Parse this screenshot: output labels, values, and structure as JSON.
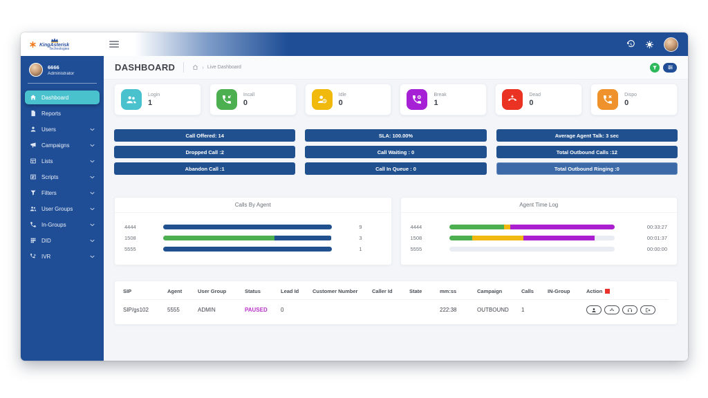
{
  "theme": {
    "navy": "#1f4e96",
    "navyPill": "#21508f",
    "navyLight": "#3c69a7",
    "teal": "#4ac2ce",
    "green": "#4caf50",
    "yellow": "#f0b810",
    "purple": "#aa1fd0",
    "red": "#e8312a",
    "orange": "#f0922b",
    "magenta": "#bb33cc",
    "track": "#e9edf3",
    "contentBg": "#f3f5f9"
  },
  "brand": {
    "name": "KingAsterisk",
    "tagline": "Technologies"
  },
  "header": {
    "icons": {
      "menu": "hamburger-icon",
      "history": "history-icon",
      "settings": "gears-icon",
      "avatar": "user-avatar"
    }
  },
  "user_panel": {
    "id": "6666",
    "role": "Administrator"
  },
  "sidebar": {
    "items": [
      {
        "label": "Dashboard",
        "icon": "home-icon",
        "active": true,
        "expandable": false
      },
      {
        "label": "Reports",
        "icon": "report-icon",
        "active": false,
        "expandable": false
      },
      {
        "label": "Users",
        "icon": "user-icon",
        "active": false,
        "expandable": true
      },
      {
        "label": "Campaigns",
        "icon": "megaphone-icon",
        "active": false,
        "expandable": true
      },
      {
        "label": "Lists",
        "icon": "table-icon",
        "active": false,
        "expandable": true
      },
      {
        "label": "Scripts",
        "icon": "script-icon",
        "active": false,
        "expandable": true
      },
      {
        "label": "Filters",
        "icon": "funnel-icon",
        "active": false,
        "expandable": true
      },
      {
        "label": "User Groups",
        "icon": "user-group-icon",
        "active": false,
        "expandable": true
      },
      {
        "label": "In-Groups",
        "icon": "phone-icon",
        "active": false,
        "expandable": true
      },
      {
        "label": "DID",
        "icon": "keypad-icon",
        "active": false,
        "expandable": true
      },
      {
        "label": "IVR",
        "icon": "phone-wave-icon",
        "active": false,
        "expandable": true
      }
    ]
  },
  "page": {
    "title": "DASHBOARD",
    "breadcrumb": {
      "home_icon": "home-icon",
      "separator": "›",
      "current": "Live Dashboard"
    },
    "toolbar": {
      "filter_button_icon": "funnel-icon",
      "filter_button_color": "#2eb85c",
      "options_button_icon": "sliders-icon"
    }
  },
  "stat_cards": [
    {
      "label": "Login",
      "value": "1",
      "color": "#4ac2ce",
      "icon": "users-icon"
    },
    {
      "label": "Incall",
      "value": "0",
      "color": "#4caf50",
      "icon": "phone-incoming-icon"
    },
    {
      "label": "Idle",
      "value": "0",
      "color": "#f0b90b",
      "icon": "user-clock-icon"
    },
    {
      "label": "Break",
      "value": "1",
      "color": "#a620d6",
      "icon": "phone-pause-icon"
    },
    {
      "label": "Dead",
      "value": "0",
      "color": "#ea3323",
      "icon": "phone-down-icon"
    },
    {
      "label": "Dispo",
      "value": "0",
      "color": "#f0922b",
      "icon": "phone-x-icon"
    }
  ],
  "stat_pills": [
    [
      "Call Offered: 14",
      "Dropped Call :2",
      "Abandon Call :1"
    ],
    [
      "SLA: 100.00%",
      "Call Waiting : 0",
      "Call In Queue : 0"
    ],
    [
      "Average Agent Talk: 3 sec",
      "Total Outbound Calls :12",
      "Total Outbound Ringing :0"
    ]
  ],
  "chart_data": [
    {
      "type": "bar",
      "title": "Calls By Agent",
      "orientation": "horizontal",
      "rows": [
        {
          "label": "4444",
          "value": "9",
          "segments": [
            {
              "color": "navyPill",
              "pct": 100
            }
          ]
        },
        {
          "label": "1508",
          "value": "3",
          "segments": [
            {
              "color": "green",
              "pct": 66
            },
            {
              "color": "navyPill",
              "pct": 34
            }
          ]
        },
        {
          "label": "5555",
          "value": "1",
          "segments": [
            {
              "color": "navyPill",
              "pct": 100
            }
          ]
        }
      ]
    },
    {
      "type": "bar",
      "title": "Agent Time Log",
      "orientation": "horizontal",
      "rows": [
        {
          "label": "4444",
          "value": "00:33:27",
          "segments": [
            {
              "color": "green",
              "pct": 33
            },
            {
              "color": "yellow",
              "pct": 4
            },
            {
              "color": "purple",
              "pct": 63
            }
          ]
        },
        {
          "label": "1508",
          "value": "00:01:37",
          "segments": [
            {
              "color": "green",
              "pct": 14
            },
            {
              "color": "yellow",
              "pct": 31
            },
            {
              "color": "purple",
              "pct": 43
            }
          ]
        },
        {
          "label": "5555",
          "value": "00:00:00",
          "segments": []
        }
      ]
    }
  ],
  "table": {
    "headers": [
      "SIP",
      "Agent",
      "User Group",
      "Status",
      "Lead Id",
      "Customer Number",
      "Caller Id",
      "State",
      "mm:ss",
      "Campaign",
      "Calls",
      "IN-Group",
      "Action"
    ],
    "rows": [
      {
        "sip": "SIP/gs102",
        "agent": "5555",
        "user_group": "ADMIN",
        "status": "PAUSED",
        "lead_id": "0",
        "customer_number": "",
        "caller_id": "",
        "state": "",
        "mmss": "222:38",
        "campaign": "OUTBOUND",
        "calls": "1",
        "in_group": "",
        "actions": [
          "agent-icon",
          "hangup-icon",
          "headset-icon",
          "logout-icon"
        ]
      }
    ]
  }
}
